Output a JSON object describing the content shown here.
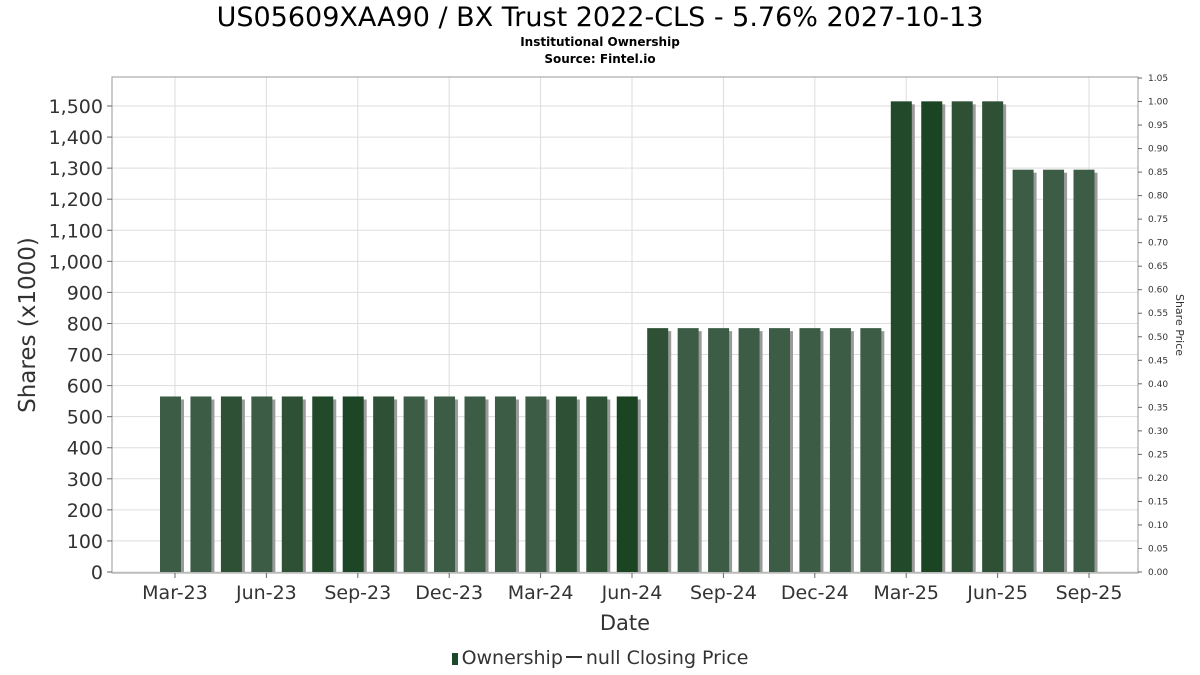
{
  "chart_data": {
    "type": "bar",
    "title": "US05609XAA90 / BX Trust 2022-CLS - 5.76% 2027-10-13",
    "subtitle_lines": [
      "Institutional Ownership",
      "Source: Fintel.io"
    ],
    "xlabel": "Date",
    "ylabel": "Shares (x1000)",
    "y2label": "Share Price",
    "ylim": [
      0,
      1600
    ],
    "y_ticks": [
      "0",
      "100",
      "200",
      "300",
      "400",
      "500",
      "600",
      "700",
      "800",
      "900",
      "1,000",
      "1,100",
      "1,200",
      "1,300",
      "1,400",
      "1,500"
    ],
    "y2lim": [
      0,
      1.05
    ],
    "y2_ticks": [
      "0.00",
      "0.05",
      "0.10",
      "0.15",
      "0.20",
      "0.25",
      "0.30",
      "0.35",
      "0.40",
      "0.45",
      "0.50",
      "0.55",
      "0.60",
      "0.65",
      "0.70",
      "0.75",
      "0.80",
      "0.85",
      "0.90",
      "0.95",
      "1.00",
      "1.05"
    ],
    "x_ticks": [
      "Mar-23",
      "Jun-23",
      "Sep-23",
      "Dec-23",
      "Mar-24",
      "Jun-24",
      "Sep-24",
      "Dec-24",
      "Mar-25",
      "Jun-25",
      "Sep-25"
    ],
    "grid": true,
    "legend_position": "bottom",
    "series": [
      {
        "name": "Ownership",
        "values": [
          565,
          565,
          565,
          565,
          565,
          565,
          565,
          565,
          565,
          565,
          565,
          565,
          565,
          565,
          565,
          565,
          785,
          785,
          785,
          785,
          785,
          785,
          785,
          785,
          1515,
          1515,
          1515,
          1515,
          1295,
          1295,
          1295
        ]
      }
    ],
    "colors": [
      "#3d5c46",
      "#3d5c46",
      "#2e5035",
      "#3d5c46",
      "#2e5035",
      "#224a2a",
      "#1c4626",
      "#2e5035",
      "#3d5c46",
      "#3d5c46",
      "#3d5c46",
      "#3d5c46",
      "#3d5c46",
      "#2e5035",
      "#2e5035",
      "#1a4422",
      "#2e5035",
      "#3d5c46",
      "#3d5c46",
      "#3d5c46",
      "#3d5c46",
      "#3d5c46",
      "#3d5c46",
      "#3d5c46",
      "#224a2a",
      "#1a4422",
      "#2e5035",
      "#2e5035",
      "#3d5c46",
      "#3d5c46",
      "#3d5c46"
    ],
    "legend": {
      "ownership_label": "Ownership",
      "price_label": "null Closing Price"
    }
  }
}
